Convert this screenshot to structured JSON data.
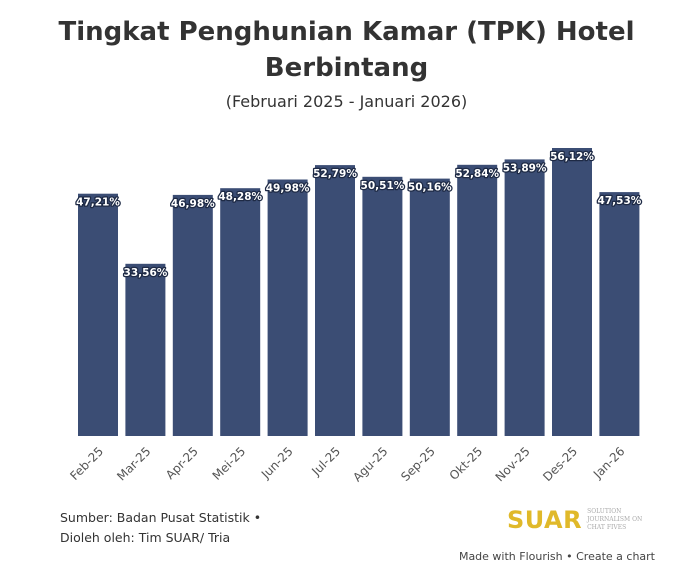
{
  "header": {
    "title": "Tingkat Penghunian Kamar (TPK) Hotel Berbintang",
    "subtitle": "(Februari 2025 - Januari 2026)"
  },
  "chart_data": {
    "type": "bar",
    "title": "Tingkat Penghunian Kamar (TPK) Hotel Berbintang",
    "subtitle": "(Februari 2025 - Januari 2026)",
    "categories": [
      "Feb-25",
      "Mar-25",
      "Apr-25",
      "Mei-25",
      "Jun-25",
      "Jul-25",
      "Agu-25",
      "Sep-25",
      "Okt-25",
      "Nov-25",
      "Des-25",
      "Jan-26"
    ],
    "values": [
      47.21,
      33.56,
      46.98,
      48.28,
      49.98,
      52.79,
      50.51,
      50.16,
      52.84,
      53.89,
      56.12,
      47.53
    ],
    "labels": [
      "47,21%",
      "33,56%",
      "46,98%",
      "48,28%",
      "49,98%",
      "52,79%",
      "50,51%",
      "50,16%",
      "52,84%",
      "53,89%",
      "56,12%",
      "47,53%"
    ],
    "ylim": [
      0,
      56.12
    ],
    "grid": false,
    "legend": "none",
    "colors": {
      "bar": "#3b4d74"
    }
  },
  "footer": {
    "source_line1": "Sumber: Badan Pusat Statistik •",
    "source_line2": "Dioleh oleh: Tim SUAR/ Tria",
    "logo_word": "SUAR",
    "logo_tagline": "SOLUTION JOURNALISM ON CHAT FIVES",
    "credit": "Made with Flourish • Create a chart",
    "logo_color": "#e0b92a"
  }
}
